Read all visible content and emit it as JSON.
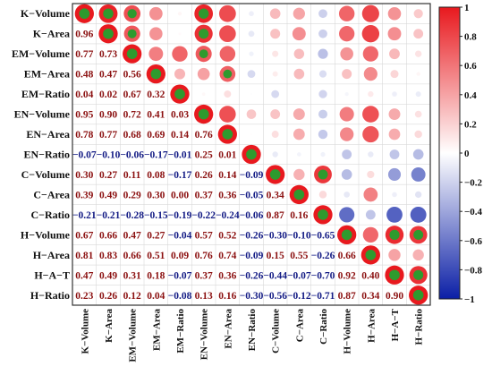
{
  "chart_data": {
    "type": "heatmap",
    "title": "",
    "variables": [
      "K−Volume",
      "K−Area",
      "EM−Volume",
      "EM−Area",
      "EM−Ratio",
      "EN−Volume",
      "EN−Area",
      "EN−Ratio",
      "C−Volume",
      "C−Area",
      "C−Ratio",
      "H−Volume",
      "H−Area",
      "H−A−T",
      "H−Ratio"
    ],
    "matrix": [
      [
        1.0,
        0.96,
        0.77,
        0.48,
        0.04,
        0.95,
        0.78,
        -0.07,
        0.3,
        0.39,
        -0.21,
        0.67,
        0.81,
        0.47,
        0.23
      ],
      [
        0.96,
        1.0,
        0.73,
        0.47,
        0.02,
        0.9,
        0.77,
        -0.1,
        0.27,
        0.49,
        -0.21,
        0.66,
        0.83,
        0.49,
        0.26
      ],
      [
        0.77,
        0.73,
        1.0,
        0.56,
        0.67,
        0.72,
        0.68,
        -0.06,
        0.11,
        0.29,
        -0.28,
        0.47,
        0.66,
        0.31,
        0.12
      ],
      [
        0.48,
        0.47,
        0.56,
        1.0,
        0.32,
        0.41,
        0.69,
        -0.17,
        0.08,
        0.3,
        -0.15,
        0.27,
        0.51,
        0.18,
        0.04
      ],
      [
        0.04,
        0.02,
        0.67,
        0.32,
        1.0,
        0.03,
        0.14,
        -0.01,
        -0.17,
        0.0,
        -0.19,
        -0.04,
        0.09,
        -0.07,
        -0.08
      ],
      [
        0.95,
        0.9,
        0.72,
        0.41,
        0.03,
        1.0,
        0.76,
        0.25,
        0.26,
        0.37,
        -0.22,
        0.57,
        0.76,
        0.37,
        0.13
      ],
      [
        0.78,
        0.77,
        0.68,
        0.69,
        0.14,
        0.76,
        1.0,
        0.01,
        0.14,
        0.36,
        -0.24,
        0.52,
        0.74,
        0.36,
        0.16
      ],
      [
        -0.07,
        -0.1,
        -0.06,
        -0.17,
        -0.01,
        0.25,
        0.01,
        1.0,
        -0.09,
        -0.05,
        -0.06,
        -0.26,
        -0.09,
        -0.26,
        -0.3
      ],
      [
        0.3,
        0.27,
        0.11,
        0.08,
        -0.17,
        0.26,
        0.14,
        -0.09,
        1.0,
        0.34,
        0.87,
        -0.3,
        0.15,
        -0.44,
        -0.56
      ],
      [
        0.39,
        0.49,
        0.29,
        0.3,
        0.0,
        0.37,
        0.36,
        -0.05,
        0.34,
        1.0,
        0.16,
        -0.1,
        0.55,
        -0.07,
        -0.12
      ],
      [
        -0.21,
        -0.21,
        -0.28,
        -0.15,
        -0.19,
        -0.22,
        -0.24,
        -0.06,
        0.87,
        0.16,
        1.0,
        -0.65,
        -0.26,
        -0.7,
        -0.71
      ],
      [
        0.67,
        0.66,
        0.47,
        0.27,
        -0.04,
        0.57,
        0.52,
        -0.26,
        -0.3,
        -0.1,
        -0.65,
        1.0,
        0.66,
        0.92,
        0.87
      ],
      [
        0.81,
        0.83,
        0.66,
        0.51,
        0.09,
        0.76,
        0.74,
        -0.09,
        0.15,
        0.55,
        -0.26,
        0.66,
        1.0,
        0.4,
        0.34
      ],
      [
        0.47,
        0.49,
        0.31,
        0.18,
        -0.07,
        0.37,
        0.36,
        -0.26,
        -0.44,
        -0.07,
        -0.7,
        0.92,
        0.4,
        1.0,
        0.9
      ],
      [
        0.23,
        0.26,
        0.12,
        0.04,
        -0.08,
        0.13,
        0.16,
        -0.3,
        -0.56,
        -0.12,
        -0.71,
        0.87,
        0.34,
        0.9,
        1.0
      ]
    ],
    "value_labels": [
      [
        null,
        null,
        null,
        null,
        null,
        null,
        null,
        null,
        null,
        null,
        null,
        null,
        null,
        null,
        null
      ],
      [
        "0.96",
        null,
        null,
        null,
        null,
        null,
        null,
        null,
        null,
        null,
        null,
        null,
        null,
        null,
        null
      ],
      [
        "0.77",
        "0.73",
        null,
        null,
        null,
        null,
        null,
        null,
        null,
        null,
        null,
        null,
        null,
        null,
        null
      ],
      [
        "0.48",
        "0.47",
        "0.56",
        null,
        null,
        null,
        null,
        null,
        null,
        null,
        null,
        null,
        null,
        null,
        null
      ],
      [
        "0.04",
        "0.02",
        "0.67",
        "0.32",
        null,
        null,
        null,
        null,
        null,
        null,
        null,
        null,
        null,
        null,
        null
      ],
      [
        "0.95",
        "0.90",
        "0.72",
        "0.41",
        "0.03",
        null,
        null,
        null,
        null,
        null,
        null,
        null,
        null,
        null,
        null
      ],
      [
        "0.78",
        "0.77",
        "0.68",
        "0.69",
        "0.14",
        "0.76",
        null,
        null,
        null,
        null,
        null,
        null,
        null,
        null,
        null
      ],
      [
        "−0.07",
        "−0.10",
        "−0.06",
        "−0.17",
        "−0.01",
        "0.25",
        "0.01",
        null,
        null,
        null,
        null,
        null,
        null,
        null,
        null
      ],
      [
        "0.30",
        "0.27",
        "0.11",
        "0.08",
        "−0.17",
        "0.26",
        "0.14",
        "−0.09",
        null,
        null,
        null,
        null,
        null,
        null,
        null
      ],
      [
        "0.39",
        "0.49",
        "0.29",
        "0.30",
        "0.00",
        "0.37",
        "0.36",
        "−0.05",
        "0.34",
        null,
        null,
        null,
        null,
        null,
        null
      ],
      [
        "−0.21",
        "−0.21",
        "−0.28",
        "−0.15",
        "−0.19",
        "−0.22",
        "−0.24",
        "−0.06",
        "0.87",
        "0.16",
        null,
        null,
        null,
        null,
        null
      ],
      [
        "0.67",
        "0.66",
        "0.47",
        "0.27",
        "−0.04",
        "0.57",
        "0.52",
        "−0.26",
        "−0.30",
        "−0.10",
        "−0.65",
        null,
        null,
        null,
        null
      ],
      [
        "0.81",
        "0.83",
        "0.66",
        "0.51",
        "0.09",
        "0.76",
        "0.74",
        "−0.09",
        "0.15",
        "0.55",
        "−0.26",
        "0.66",
        null,
        null,
        null
      ],
      [
        "0.47",
        "0.49",
        "0.31",
        "0.18",
        "−0.07",
        "0.37",
        "0.36",
        "−0.26",
        "−0.44",
        "−0.07",
        "−0.70",
        "0.92",
        "0.40",
        null,
        null
      ],
      [
        "0.23",
        "0.26",
        "0.12",
        "0.04",
        "−0.08",
        "0.13",
        "0.16",
        "−0.30",
        "−0.56",
        "−0.12",
        "−0.71",
        "0.87",
        "0.34",
        "0.90",
        null
      ]
    ],
    "lower_triangle": "numbers",
    "upper_triangle": "circles",
    "diagonal": "circles",
    "significance_marks": [
      [
        0,
        0
      ],
      [
        0,
        1
      ],
      [
        0,
        2
      ],
      [
        0,
        5
      ],
      [
        1,
        1
      ],
      [
        1,
        2
      ],
      [
        1,
        5
      ],
      [
        2,
        2
      ],
      [
        2,
        5
      ],
      [
        3,
        3
      ],
      [
        3,
        6
      ],
      [
        4,
        4
      ],
      [
        5,
        5
      ],
      [
        6,
        6
      ],
      [
        7,
        7
      ],
      [
        8,
        8
      ],
      [
        8,
        10
      ],
      [
        9,
        9
      ],
      [
        10,
        10
      ],
      [
        11,
        11
      ],
      [
        11,
        13
      ],
      [
        11,
        14
      ],
      [
        12,
        12
      ],
      [
        13,
        13
      ],
      [
        13,
        14
      ],
      [
        14,
        14
      ]
    ],
    "colorbar": {
      "range": [
        -1,
        1
      ],
      "ticks": [
        "1",
        "0.8",
        "0.6",
        "0.4",
        "0.2",
        "0",
        "−0.2",
        "−0.4",
        "−0.6",
        "−0.8",
        "−1"
      ],
      "colors": {
        "negative": "#0b1fa6",
        "zero": "#ffffff",
        "positive": "#e8191e"
      }
    },
    "grid": true,
    "legend": "colorbar-right"
  }
}
